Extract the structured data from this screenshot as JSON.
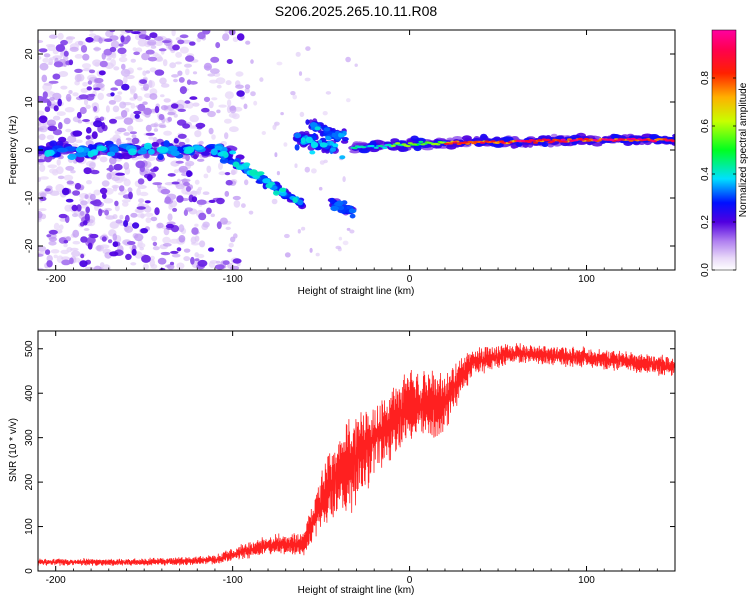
{
  "title": "S206.2025.265.10.11.R08",
  "chart_data": [
    {
      "type": "heatmap",
      "name": "spectrogram",
      "xlabel": "Height of straight line (km)",
      "ylabel": "Frequency (Hz)",
      "xlim": [
        -210,
        150
      ],
      "ylim": [
        -25,
        25
      ],
      "xticks": [
        -200,
        -100,
        0,
        100
      ],
      "yticks": [
        -20,
        -10,
        0,
        10,
        20
      ],
      "colorbar": {
        "label": "Normalized spectral amplitude",
        "range": [
          0,
          1
        ],
        "ticks": [
          0.0,
          0.2,
          0.4,
          0.6,
          0.8
        ],
        "tick_labels": [
          "0.0",
          "0.2",
          "0.4",
          "0.6",
          "0.8"
        ],
        "colormap": [
          "#ffffff",
          "#d8b8f0",
          "#9a50e8",
          "#4a00e0",
          "#0018ff",
          "#00d8ff",
          "#00ff30",
          "#f0ff00",
          "#ff8000",
          "#ff0020",
          "#ff00a0"
        ]
      },
      "features": [
        {
          "desc": "scattered noise",
          "x_range": [
            -210,
            -95
          ],
          "f_range": [
            -25,
            25
          ]
        },
        {
          "desc": "band near 0 Hz",
          "x_range": [
            -210,
            -100
          ],
          "f_center": 0
        },
        {
          "desc": "descending branch",
          "points": [
            [
              -105,
              0
            ],
            [
              -90,
              -4
            ],
            [
              -75,
              -8
            ],
            [
              -60,
              -11
            ]
          ]
        },
        {
          "desc": "ascending branch",
          "points": [
            [
              -65,
              2
            ],
            [
              -55,
              0
            ],
            [
              -50,
              4
            ],
            [
              -40,
              1
            ],
            [
              -35,
              -13
            ]
          ]
        },
        {
          "desc": "stable carrier",
          "x_range": [
            -30,
            150
          ],
          "f_center": 2,
          "max_amplitude": 0.95
        }
      ]
    },
    {
      "type": "line",
      "name": "snr",
      "xlabel": "Height of straight line (km)",
      "ylabel": "SNR (10 * v/v)",
      "xlim": [
        -210,
        150
      ],
      "ylim": [
        0,
        540
      ],
      "xticks": [
        -200,
        -100,
        0,
        100
      ],
      "yticks": [
        0,
        100,
        200,
        300,
        400,
        500
      ],
      "color": "#ff2020",
      "envelope": [
        {
          "x": -210,
          "mean": 20,
          "spread": 15
        },
        {
          "x": -150,
          "mean": 20,
          "spread": 15
        },
        {
          "x": -110,
          "mean": 25,
          "spread": 20
        },
        {
          "x": -80,
          "mean": 60,
          "spread": 40
        },
        {
          "x": -60,
          "mean": 60,
          "spread": 50
        },
        {
          "x": -45,
          "mean": 200,
          "spread": 150
        },
        {
          "x": -35,
          "mean": 230,
          "spread": 200
        },
        {
          "x": -20,
          "mean": 300,
          "spread": 150
        },
        {
          "x": 0,
          "mean": 370,
          "spread": 150
        },
        {
          "x": 20,
          "mean": 380,
          "spread": 130
        },
        {
          "x": 35,
          "mean": 470,
          "spread": 60
        },
        {
          "x": 60,
          "mean": 490,
          "spread": 40
        },
        {
          "x": 100,
          "mean": 480,
          "spread": 40
        },
        {
          "x": 150,
          "mean": 460,
          "spread": 40
        }
      ]
    }
  ]
}
